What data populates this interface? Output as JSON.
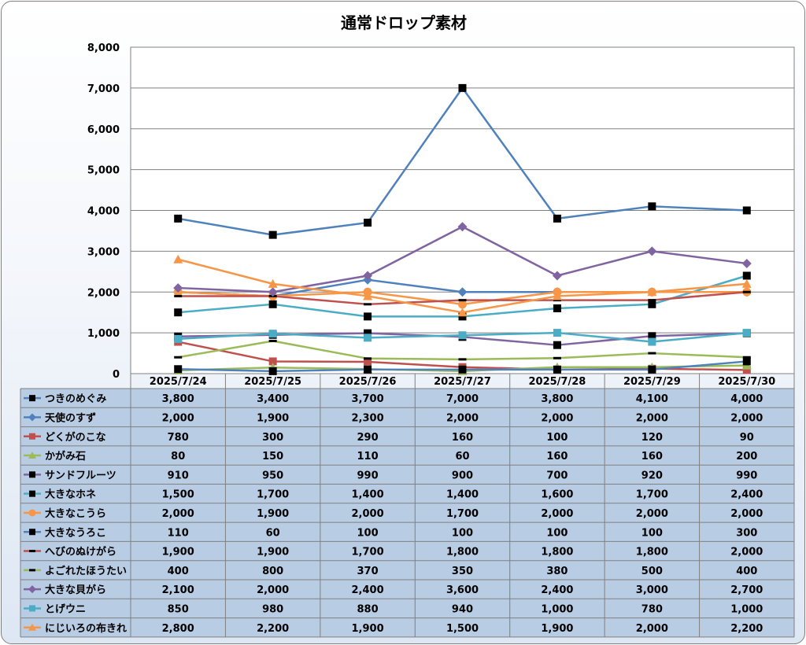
{
  "chart_data": {
    "type": "line",
    "title": "通常ドロップ素材",
    "x": [
      "2025/7/24",
      "2025/7/25",
      "2025/7/26",
      "2025/7/27",
      "2025/7/28",
      "2025/7/29",
      "2025/7/30"
    ],
    "ylim": [
      0,
      8000
    ],
    "yticks": [
      0,
      1000,
      2000,
      3000,
      4000,
      5000,
      6000,
      7000,
      8000
    ],
    "ytick_labels": [
      "0",
      "1,000",
      "2,000",
      "3,000",
      "4,000",
      "5,000",
      "6,000",
      "7,000",
      "8,000"
    ],
    "grid": true,
    "legend": "data-table",
    "series": [
      {
        "name": "つきのめぐみ",
        "color": "#4f81bd",
        "marker": "square-black",
        "values": [
          3800,
          3400,
          3700,
          7000,
          3800,
          4100,
          4000
        ],
        "labels": [
          "3,800",
          "3,400",
          "3,700",
          "7,000",
          "3,800",
          "4,100",
          "4,000"
        ]
      },
      {
        "name": "天使のすず",
        "color": "#4f81bd",
        "marker": "diamond",
        "values": [
          2000,
          1900,
          2300,
          2000,
          2000,
          2000,
          2000
        ],
        "labels": [
          "2,000",
          "1,900",
          "2,300",
          "2,000",
          "2,000",
          "2,000",
          "2,000"
        ]
      },
      {
        "name": "どくがのこな",
        "color": "#c0504d",
        "marker": "square",
        "values": [
          780,
          300,
          290,
          160,
          100,
          120,
          90
        ],
        "labels": [
          "780",
          "300",
          "290",
          "160",
          "100",
          "120",
          "90"
        ]
      },
      {
        "name": "かがみ石",
        "color": "#9bbb59",
        "marker": "triangle",
        "values": [
          80,
          150,
          110,
          60,
          160,
          160,
          200
        ],
        "labels": [
          "80",
          "150",
          "110",
          "60",
          "160",
          "160",
          "200"
        ]
      },
      {
        "name": "サンドフルーツ",
        "color": "#8064a2",
        "marker": "square-black",
        "values": [
          910,
          950,
          990,
          900,
          700,
          920,
          990
        ],
        "labels": [
          "910",
          "950",
          "990",
          "900",
          "700",
          "920",
          "990"
        ]
      },
      {
        "name": "大きなホネ",
        "color": "#4bacc6",
        "marker": "square-black",
        "values": [
          1500,
          1700,
          1400,
          1400,
          1600,
          1700,
          2400
        ],
        "labels": [
          "1,500",
          "1,700",
          "1,400",
          "1,400",
          "1,600",
          "1,700",
          "2,400"
        ]
      },
      {
        "name": "大きなこうら",
        "color": "#f79646",
        "marker": "circle",
        "values": [
          2000,
          1900,
          2000,
          1700,
          2000,
          2000,
          2000
        ],
        "labels": [
          "2,000",
          "1,900",
          "2,000",
          "1,700",
          "2,000",
          "2,000",
          "2,000"
        ]
      },
      {
        "name": "大きなうろこ",
        "color": "#4f81bd",
        "marker": "square-black",
        "values": [
          110,
          60,
          100,
          100,
          100,
          100,
          300
        ],
        "labels": [
          "110",
          "60",
          "100",
          "100",
          "100",
          "100",
          "300"
        ]
      },
      {
        "name": "へびのぬけがら",
        "color": "#c0504d",
        "marker": "dash-black",
        "values": [
          1900,
          1900,
          1700,
          1800,
          1800,
          1800,
          2000
        ],
        "labels": [
          "1,900",
          "1,900",
          "1,700",
          "1,800",
          "1,800",
          "1,800",
          "2,000"
        ]
      },
      {
        "name": "よごれたほうたい",
        "color": "#9bbb59",
        "marker": "dash-black",
        "values": [
          400,
          800,
          370,
          350,
          380,
          500,
          400
        ],
        "labels": [
          "400",
          "800",
          "370",
          "350",
          "380",
          "500",
          "400"
        ]
      },
      {
        "name": "大きな貝がら",
        "color": "#8064a2",
        "marker": "diamond",
        "values": [
          2100,
          2000,
          2400,
          3600,
          2400,
          3000,
          2700
        ],
        "labels": [
          "2,100",
          "2,000",
          "2,400",
          "3,600",
          "2,400",
          "3,000",
          "2,700"
        ]
      },
      {
        "name": "とげウニ",
        "color": "#4bacc6",
        "marker": "square",
        "values": [
          850,
          980,
          880,
          940,
          1000,
          780,
          1000
        ],
        "labels": [
          "850",
          "980",
          "880",
          "940",
          "1,000",
          "780",
          "1,000"
        ]
      },
      {
        "name": "にじいろの布きれ",
        "color": "#f79646",
        "marker": "triangle",
        "values": [
          2800,
          2200,
          1900,
          1500,
          1900,
          2000,
          2200
        ],
        "labels": [
          "2,800",
          "2,200",
          "1,900",
          "1,500",
          "1,900",
          "2,000",
          "2,200"
        ]
      }
    ]
  }
}
